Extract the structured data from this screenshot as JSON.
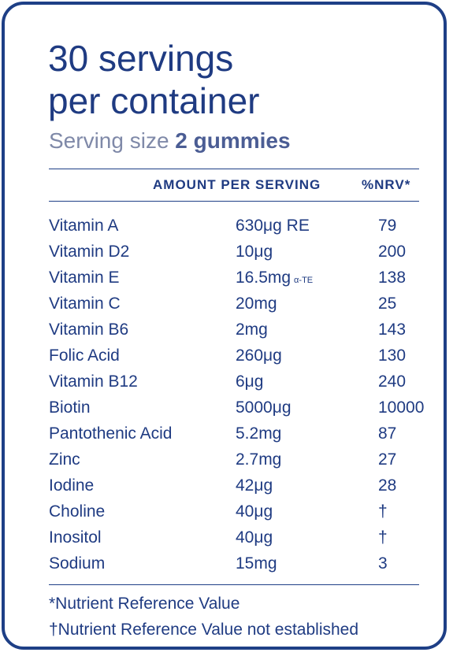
{
  "title": {
    "line1": "30 servings",
    "line2": "per container"
  },
  "serving": {
    "label": "Serving size",
    "value": "2 gummies"
  },
  "table": {
    "headers": {
      "amount": "AMOUNT PER SERVING",
      "nrv": "%NRV*"
    },
    "rows": [
      {
        "name": "Vitamin A",
        "amount": "630μg RE",
        "suffix": "",
        "nrv": "79"
      },
      {
        "name": "Vitamin D2",
        "amount": "10μg",
        "suffix": "",
        "nrv": "200"
      },
      {
        "name": "Vitamin E",
        "amount": "16.5mg",
        "suffix": "α-TE",
        "nrv": "138"
      },
      {
        "name": "Vitamin C",
        "amount": "20mg",
        "suffix": "",
        "nrv": "25"
      },
      {
        "name": "Vitamin B6",
        "amount": "2mg",
        "suffix": "",
        "nrv": "143"
      },
      {
        "name": "Folic Acid",
        "amount": "260μg",
        "suffix": "",
        "nrv": "130"
      },
      {
        "name": "Vitamin B12",
        "amount": "6μg",
        "suffix": "",
        "nrv": "240"
      },
      {
        "name": "Biotin",
        "amount": "5000μg",
        "suffix": "",
        "nrv": "10000"
      },
      {
        "name": "Pantothenic Acid",
        "amount": "5.2mg",
        "suffix": "",
        "nrv": "87"
      },
      {
        "name": "Zinc",
        "amount": "2.7mg",
        "suffix": "",
        "nrv": "27"
      },
      {
        "name": "Iodine",
        "amount": "42μg",
        "suffix": "",
        "nrv": "28"
      },
      {
        "name": "Choline",
        "amount": "40μg",
        "suffix": "",
        "nrv": "†"
      },
      {
        "name": "Inositol",
        "amount": "40μg",
        "suffix": "",
        "nrv": "†"
      },
      {
        "name": "Sodium",
        "amount": "15mg",
        "suffix": "",
        "nrv": "3"
      }
    ]
  },
  "footnotes": {
    "nrv": "*Nutrient Reference Value",
    "not_established": "†Nutrient Reference Value not established"
  },
  "colors": {
    "primary": "#1f3b82",
    "border": "#1e3f86",
    "muted": "#7f89a8"
  }
}
